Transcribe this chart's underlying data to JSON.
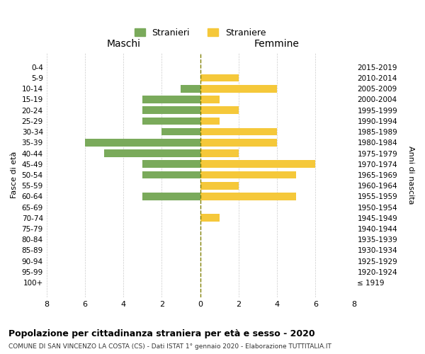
{
  "age_groups": [
    "100+",
    "95-99",
    "90-94",
    "85-89",
    "80-84",
    "75-79",
    "70-74",
    "65-69",
    "60-64",
    "55-59",
    "50-54",
    "45-49",
    "40-44",
    "35-39",
    "30-34",
    "25-29",
    "20-24",
    "15-19",
    "10-14",
    "5-9",
    "0-4"
  ],
  "birth_years": [
    "≤ 1919",
    "1920-1924",
    "1925-1929",
    "1930-1934",
    "1935-1939",
    "1940-1944",
    "1945-1949",
    "1950-1954",
    "1955-1959",
    "1960-1964",
    "1965-1969",
    "1970-1974",
    "1975-1979",
    "1980-1984",
    "1985-1989",
    "1990-1994",
    "1995-1999",
    "2000-2004",
    "2005-2009",
    "2010-2014",
    "2015-2019"
  ],
  "maschi": [
    0,
    0,
    0,
    0,
    0,
    0,
    0,
    0,
    3,
    0,
    3,
    3,
    5,
    6,
    2,
    3,
    3,
    3,
    1,
    0,
    0
  ],
  "femmine": [
    0,
    0,
    0,
    0,
    0,
    0,
    1,
    0,
    5,
    2,
    5,
    6,
    2,
    4,
    4,
    1,
    2,
    1,
    4,
    2,
    0
  ],
  "color_maschi": "#7aaa5b",
  "color_femmine": "#f5c83a",
  "title": "Popolazione per cittadinanza straniera per età e sesso - 2020",
  "subtitle": "COMUNE DI SAN VINCENZO LA COSTA (CS) - Dati ISTAT 1° gennaio 2020 - Elaborazione TUTTITALIA.IT",
  "label_maschi": "Stranieri",
  "label_femmine": "Straniere",
  "xlabel_left": "Maschi",
  "xlabel_right": "Femmine",
  "ylabel_left": "Fasce di età",
  "ylabel_right": "Anni di nascita",
  "xlim": 8,
  "bg_color": "#ffffff",
  "grid_color": "#cccccc"
}
